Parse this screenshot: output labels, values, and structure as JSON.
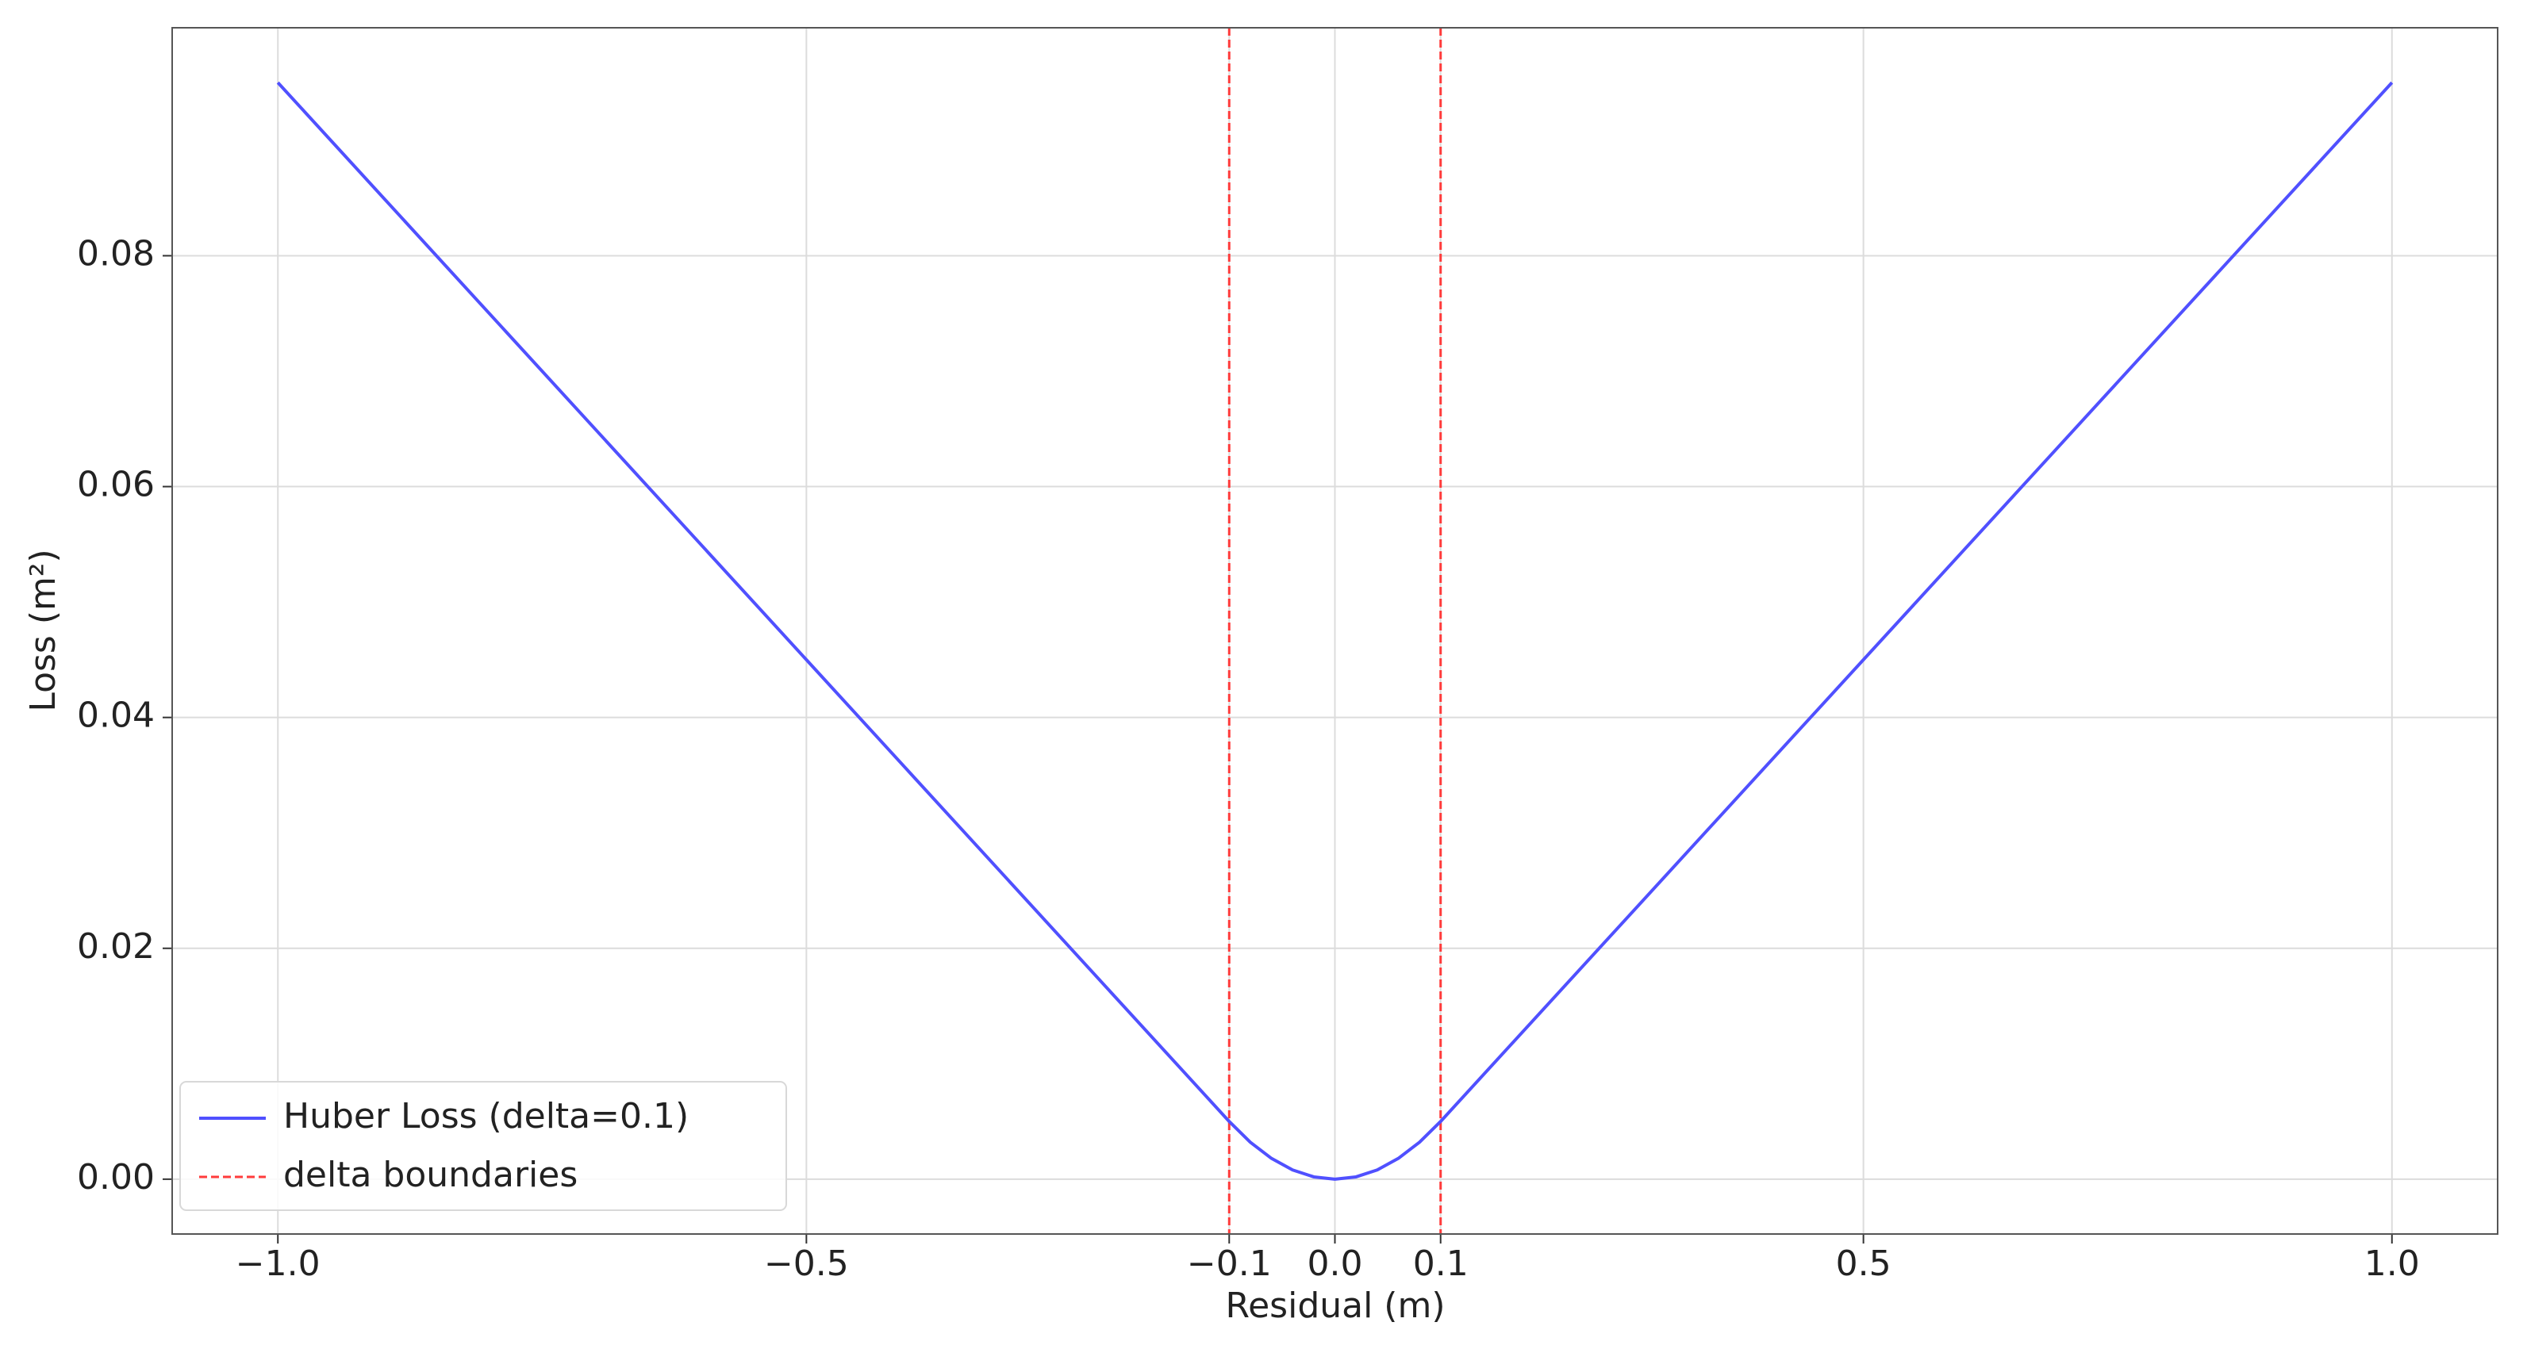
{
  "chart_data": {
    "type": "line",
    "x_label": "Residual (m)",
    "y_label": "Loss (m²)",
    "series": [
      {
        "name": "Huber Loss (delta=0.1)",
        "color": "#5050ff",
        "x": [
          -1.0,
          -0.5,
          -0.1,
          -0.08,
          -0.06,
          -0.04,
          -0.02,
          0.0,
          0.02,
          0.04,
          0.06,
          0.08,
          0.1,
          0.5,
          1.0
        ],
        "values": [
          0.095,
          0.045,
          0.005,
          0.0032,
          0.0018,
          0.0008,
          0.0002,
          0.0,
          0.0002,
          0.0008,
          0.0018,
          0.0032,
          0.005,
          0.045,
          0.095
        ]
      }
    ],
    "reference_lines": {
      "name": "delta boundaries",
      "color": "#ff3b3b",
      "x": [
        -0.1,
        0.1
      ]
    },
    "xlim": [
      -1.1,
      1.1
    ],
    "ylim": [
      -0.00475,
      0.09975
    ],
    "xticks": [
      {
        "value": -1.0,
        "label": "−1.0"
      },
      {
        "value": -0.5,
        "label": "−0.5"
      },
      {
        "value": -0.1,
        "label": "−0.1"
      },
      {
        "value": 0.0,
        "label": "0.0"
      },
      {
        "value": 0.1,
        "label": "0.1"
      },
      {
        "value": 0.5,
        "label": "0.5"
      },
      {
        "value": 1.0,
        "label": "1.0"
      }
    ],
    "yticks": [
      {
        "value": 0.0,
        "label": "0.00"
      },
      {
        "value": 0.02,
        "label": "0.02"
      },
      {
        "value": 0.04,
        "label": "0.04"
      },
      {
        "value": 0.06,
        "label": "0.06"
      },
      {
        "value": 0.08,
        "label": "0.08"
      }
    ],
    "grid": true,
    "legend": "lower left"
  }
}
